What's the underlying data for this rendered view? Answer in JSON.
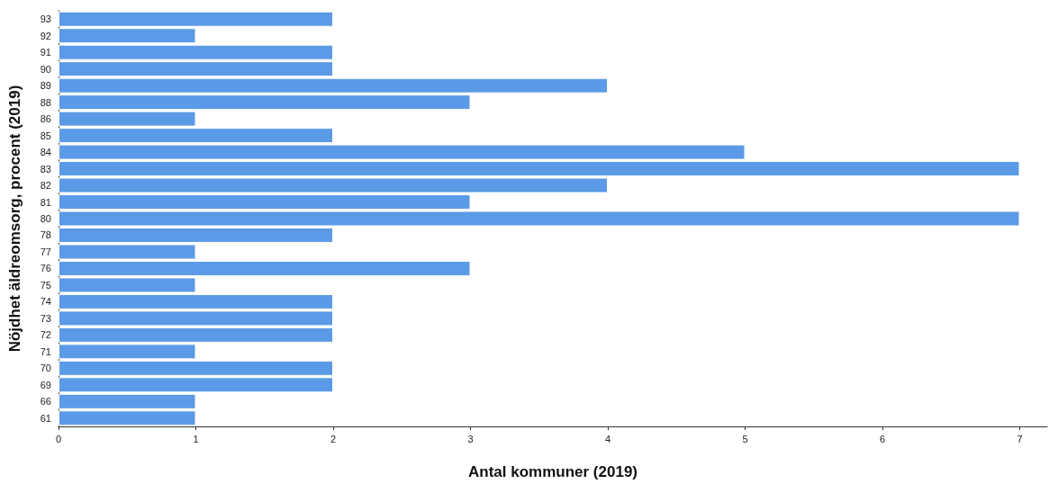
{
  "chart_data": {
    "type": "bar",
    "orientation": "horizontal",
    "xlabel": "Antal kommuner (2019)",
    "ylabel": "Nöjdhet äldreomsorg, procent (2019)",
    "categories": [
      "93",
      "92",
      "91",
      "90",
      "89",
      "88",
      "86",
      "85",
      "84",
      "83",
      "82",
      "81",
      "80",
      "78",
      "77",
      "76",
      "75",
      "74",
      "73",
      "72",
      "71",
      "70",
      "69",
      "66",
      "61"
    ],
    "values": [
      2,
      1,
      2,
      2,
      4,
      3,
      1,
      2,
      5,
      7,
      4,
      3,
      7,
      2,
      1,
      3,
      1,
      2,
      2,
      2,
      1,
      2,
      2,
      1,
      1
    ],
    "color": "#5b9ae6",
    "xlim": [
      0,
      7.2
    ],
    "xticks": [
      0,
      1,
      2,
      3,
      4,
      5,
      6,
      7
    ],
    "grid": false
  }
}
